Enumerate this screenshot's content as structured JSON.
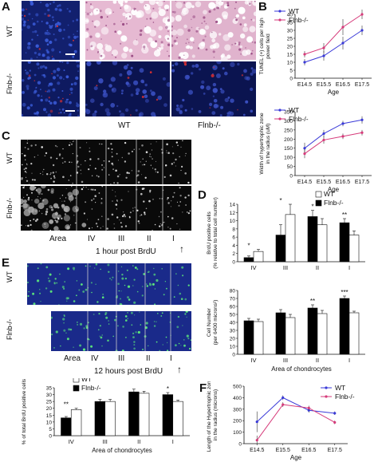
{
  "panels": {
    "A": {
      "letter": "A",
      "row_labels": [
        "WT",
        "Flnb-/-"
      ],
      "col_labels": [
        "WT",
        "Flnb-/-"
      ]
    },
    "B": {
      "letter": "B"
    },
    "C": {
      "letter": "C",
      "row_labels": [
        "WT",
        "Flnb-/-"
      ],
      "area_labels": [
        "Area",
        "IV",
        "III",
        "II",
        "I"
      ],
      "caption": "1 hour post BrdU",
      "arrow": "↑"
    },
    "D": {
      "letter": "D"
    },
    "E": {
      "letter": "E",
      "row_labels": [
        "WT",
        "Flnb-/-"
      ],
      "area_labels": [
        "Area",
        "IV",
        "III",
        "II",
        "I"
      ],
      "caption": "12 hours post BrdU",
      "arrow": "↑"
    },
    "F": {
      "letter": "F"
    }
  },
  "colors": {
    "wt_line": "#3a3ad8",
    "ko_line": "#d63a7a",
    "bar_ko": "#000000",
    "bar_wt": "#ffffff",
    "micro_blue": "#1a2a8a",
    "micro_green": "#5ef07a",
    "micro_red": "#e23030",
    "he_pink": "#c98bb0"
  },
  "chart_data": [
    {
      "id": "B-top",
      "type": "line",
      "ylabel": "TUNEL (+) cells per high power field",
      "xlabel": "Age",
      "categories": [
        "E14.5",
        "E15.5",
        "E16.5",
        "E17.5"
      ],
      "ylim": [
        0,
        40
      ],
      "yticks": [
        0,
        5,
        10,
        15,
        20,
        25,
        30,
        35,
        40
      ],
      "legend": [
        "WT",
        "Flnb-/-"
      ],
      "series": [
        {
          "name": "WT",
          "values": [
            10,
            14,
            22,
            30
          ],
          "err": [
            2,
            3,
            4,
            3
          ]
        },
        {
          "name": "Flnb-/-",
          "values": [
            15,
            19,
            32,
            40
          ],
          "err": [
            2,
            3,
            5,
            3
          ]
        }
      ]
    },
    {
      "id": "B-bottom",
      "type": "line",
      "ylabel": "Width of hypertrophic zone in the radius (uM)",
      "xlabel": "Age",
      "categories": [
        "E14.5",
        "E15.5",
        "E16.5",
        "E17.5"
      ],
      "ylim": [
        0,
        350
      ],
      "yticks": [
        0,
        50,
        100,
        150,
        200,
        250,
        300,
        350
      ],
      "legend": [
        "WT",
        "Flnb-/-"
      ],
      "series": [
        {
          "name": "WT",
          "values": [
            150,
            230,
            285,
            305
          ],
          "err": [
            30,
            20,
            15,
            20
          ]
        },
        {
          "name": "Flnb-/-",
          "values": [
            120,
            195,
            215,
            235
          ],
          "err": [
            25,
            20,
            15,
            15
          ]
        }
      ]
    },
    {
      "id": "D-top",
      "type": "bar",
      "ylabel": "BrdU positive cells (% relative to total cell number)",
      "categories": [
        "IV",
        "III",
        "II",
        "I"
      ],
      "ylim": [
        0,
        14
      ],
      "yticks": [
        0,
        2,
        4,
        6,
        8,
        10,
        12,
        14
      ],
      "legend": [
        "WT",
        "Flnb-/-"
      ],
      "series": [
        {
          "name": "Flnb-/-",
          "values": [
            1.0,
            6.5,
            11.0,
            9.5
          ],
          "err": [
            0.4,
            2.5,
            1.5,
            1.0
          ]
        },
        {
          "name": "WT",
          "values": [
            2.5,
            11.5,
            9.0,
            6.5
          ],
          "err": [
            0.5,
            2.5,
            1.5,
            1.0
          ]
        }
      ],
      "annotations": [
        "*",
        "*",
        "*",
        "**"
      ]
    },
    {
      "id": "D-bottom",
      "type": "bar",
      "ylabel": "Cell Number (per 6400 microns²)",
      "xlabel": "Area of chondrocytes",
      "categories": [
        "IV",
        "III",
        "II",
        "I"
      ],
      "ylim": [
        0,
        80
      ],
      "yticks": [
        0,
        10,
        20,
        30,
        40,
        50,
        60,
        70,
        80
      ],
      "series": [
        {
          "name": "Flnb-/-",
          "values": [
            42,
            52,
            58,
            70
          ],
          "err": [
            3,
            4,
            4,
            3
          ]
        },
        {
          "name": "WT",
          "values": [
            41,
            46,
            51,
            52
          ],
          "err": [
            3,
            4,
            4,
            2
          ]
        }
      ],
      "annotations": [
        "",
        "",
        "**",
        "***"
      ]
    },
    {
      "id": "E-bars",
      "type": "bar",
      "ylabel": "% of total BrdU positive cells",
      "xlabel": "Area of chondrocytes",
      "categories": [
        "IV",
        "III",
        "II",
        "I"
      ],
      "ylim": [
        0,
        35
      ],
      "yticks": [
        0,
        5,
        10,
        15,
        20,
        25,
        30,
        35
      ],
      "legend": [
        "WT",
        "Flnb-/-"
      ],
      "series": [
        {
          "name": "Flnb-/-",
          "values": [
            13,
            25,
            32,
            30
          ],
          "err": [
            1,
            1.5,
            2,
            1.5
          ]
        },
        {
          "name": "WT",
          "values": [
            19,
            25,
            31,
            25
          ],
          "err": [
            1,
            1.5,
            1.5,
            1
          ]
        }
      ],
      "annotations": [
        "**",
        "",
        "",
        "*"
      ]
    },
    {
      "id": "F",
      "type": "line",
      "ylabel": "Length of the Hypertrophic zone in the radius (microns)",
      "xlabel": "Age",
      "categories": [
        "E14.5",
        "E15.5",
        "E16.5",
        "E17.5"
      ],
      "ylim": [
        0,
        500
      ],
      "yticks": [
        0,
        100,
        200,
        300,
        400,
        500
      ],
      "legend": [
        "WT",
        "Flnb-/-"
      ],
      "series": [
        {
          "name": "WT",
          "values": [
            190,
            400,
            290,
            265
          ],
          "err": [
            90,
            20,
            20,
            15
          ]
        },
        {
          "name": "Flnb-/-",
          "values": [
            30,
            340,
            310,
            185
          ],
          "err": [
            40,
            20,
            20,
            15
          ]
        }
      ]
    }
  ]
}
